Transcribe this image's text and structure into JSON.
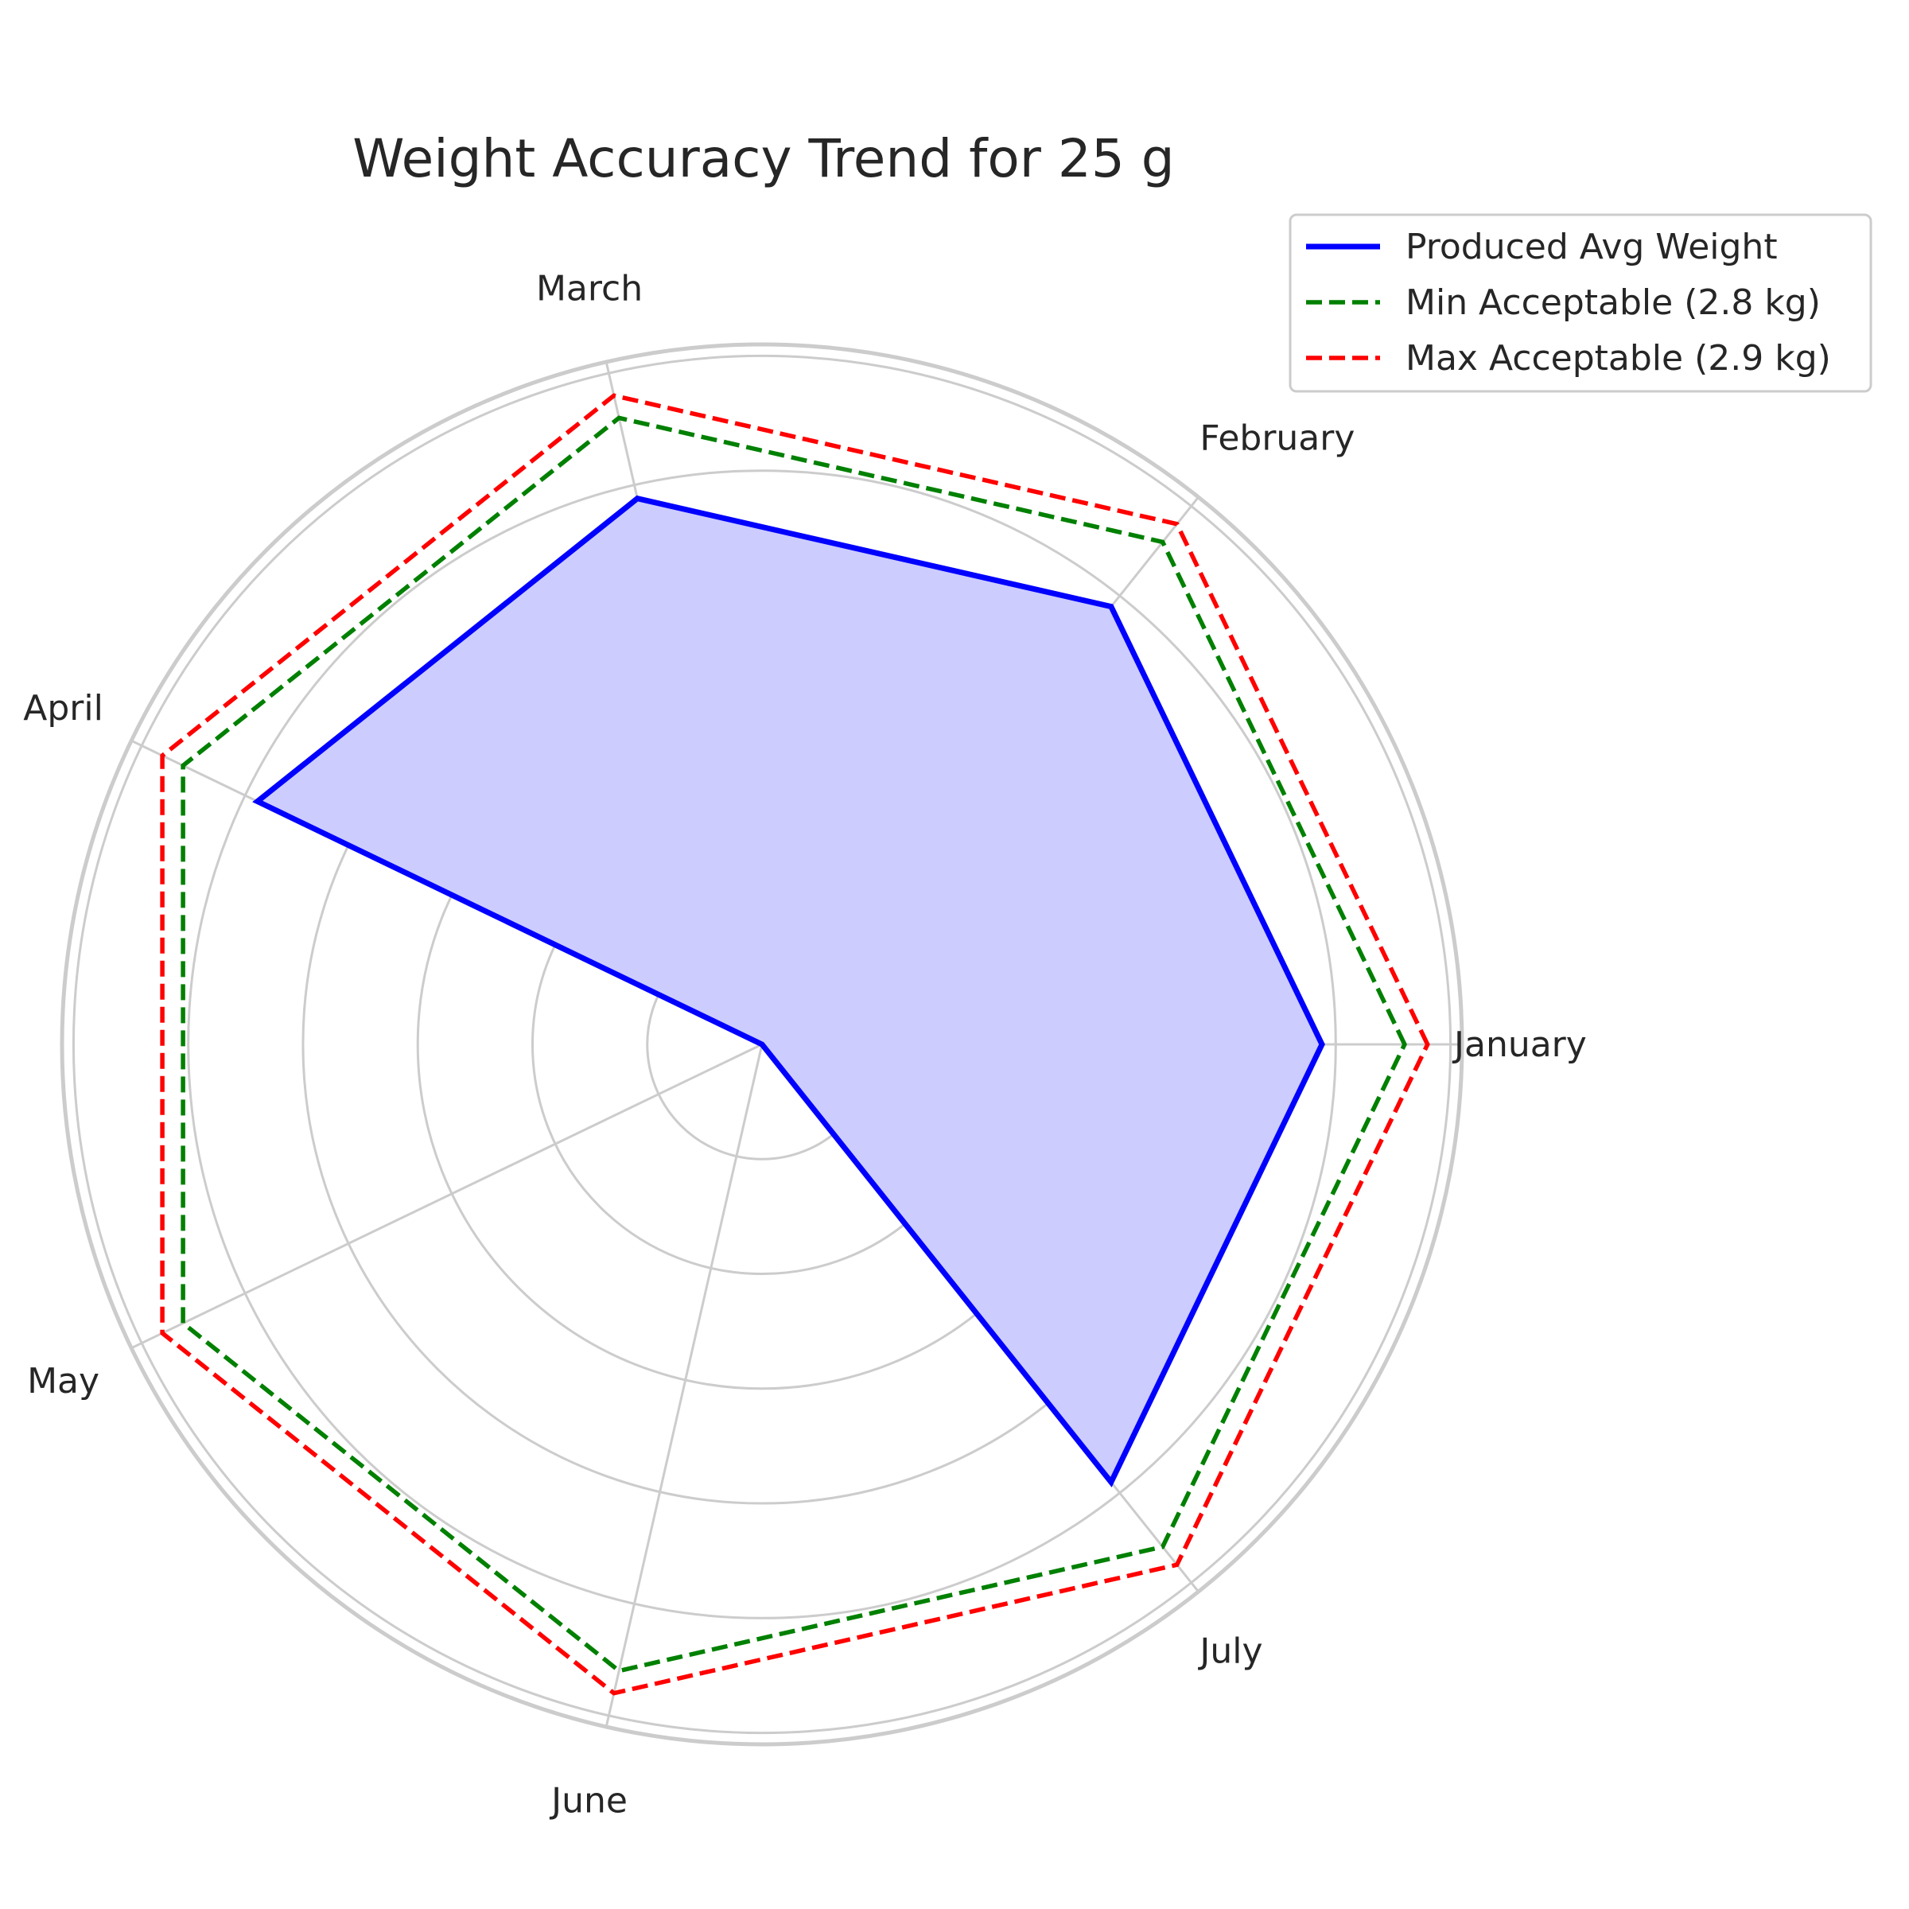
{
  "chart_data": {
    "type": "radar",
    "title": "Weight Accuracy Trend for 25 g",
    "categories": [
      "January",
      "February",
      "March",
      "April",
      "May",
      "June",
      "July"
    ],
    "series": [
      {
        "name": "Produced Avg Weight",
        "values": [
          2.44,
          2.44,
          2.44,
          2.44,
          0,
          0,
          2.44
        ],
        "color": "#0000ff",
        "style": "solid",
        "fill": "#ccccff"
      },
      {
        "name": "Min Acceptable (2.8 kg)",
        "values": [
          2.8,
          2.8,
          2.8,
          2.8,
          2.8,
          2.8,
          2.8
        ],
        "color": "#008000",
        "style": "dashed"
      },
      {
        "name": "Max Acceptable (2.9 kg)",
        "values": [
          2.9,
          2.9,
          2.9,
          2.9,
          2.9,
          2.9,
          2.9
        ],
        "color": "#ff0000",
        "style": "dashed"
      }
    ],
    "rlim": [
      0,
      3.05
    ],
    "rgrid": [
      0.5,
      1.0,
      1.5,
      2.0,
      2.5,
      3.0
    ],
    "grid": true,
    "legend_position": "top-right",
    "grid_color": "#cccccc",
    "text_color": "#262626"
  }
}
